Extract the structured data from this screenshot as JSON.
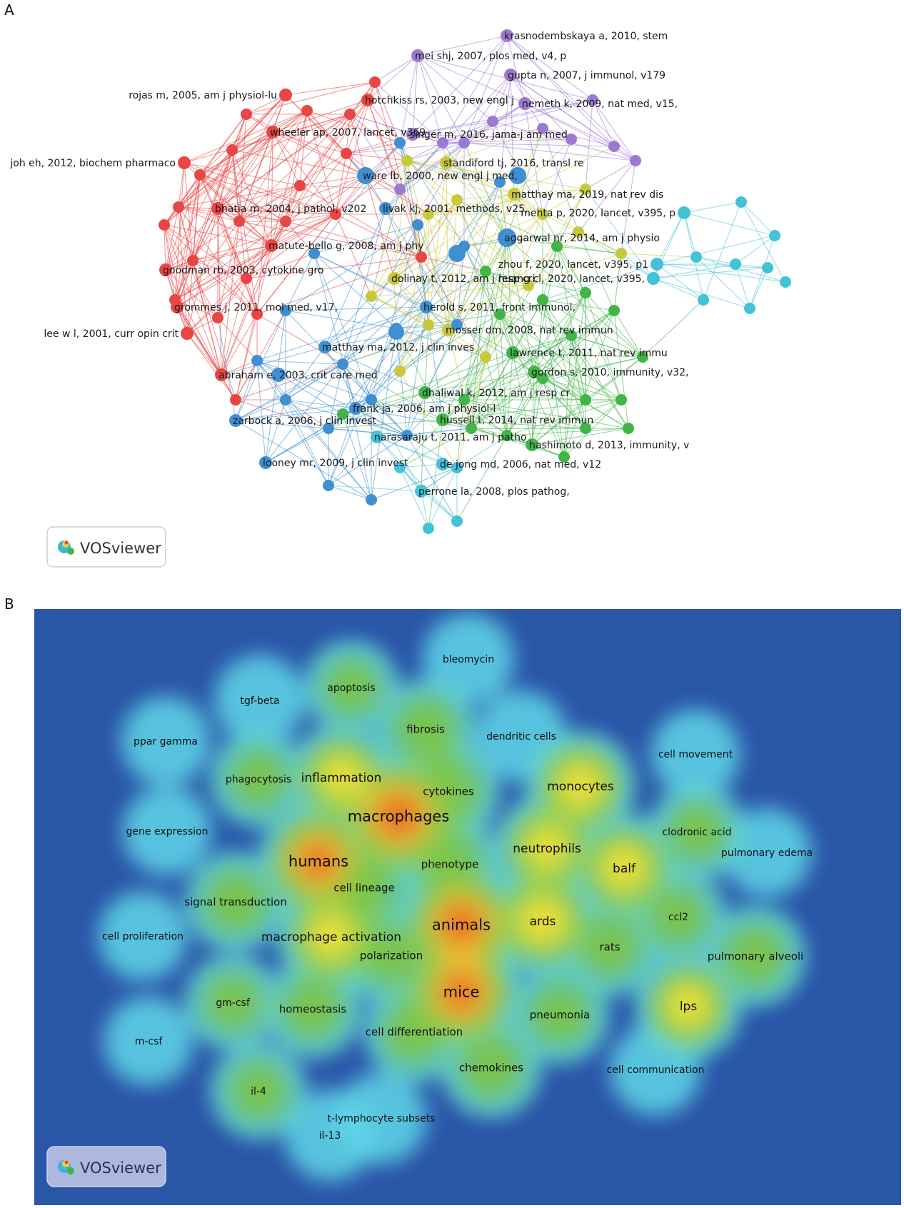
{
  "panel_a": {
    "letter": "A",
    "colors": {
      "red": "#e84545",
      "purple": "#9d7ad1",
      "blue": "#3f8fd2",
      "green": "#41b548",
      "yellow": "#c8c83c",
      "cyan": "#43c2d8"
    },
    "logo_text": "VOSviewer",
    "labeled_nodes": [
      {
        "label": "krasnodembskaya a, 2010, stem",
        "cluster": "purple"
      },
      {
        "label": "mei shj, 2007, plos med, v4, p",
        "cluster": "purple"
      },
      {
        "label": "gupta n, 2007, j immunol, v179",
        "cluster": "purple"
      },
      {
        "label": "rojas m, 2005, am j physiol-lu",
        "cluster": "red"
      },
      {
        "label": "hotchkiss rs, 2003, new engl j",
        "cluster": "red"
      },
      {
        "label": "nemeth k, 2009, nat med, v15,",
        "cluster": "purple"
      },
      {
        "label": "wheeler ap, 2007, lancet, v369",
        "cluster": "red"
      },
      {
        "label": "singer m, 2016, jama-j am med",
        "cluster": "purple"
      },
      {
        "label": "standiford tj, 2016, transl re",
        "cluster": "yellow"
      },
      {
        "label": "joh eh, 2012, biochem pharmaco",
        "cluster": "red"
      },
      {
        "label": "ware lb, 2000, new engl j med,",
        "cluster": "red"
      },
      {
        "label": "matthay ma, 2019, nat rev dis",
        "cluster": "yellow"
      },
      {
        "label": "livak kj, 2001, methods, v25,",
        "cluster": "blue"
      },
      {
        "label": "mehta p, 2020, lancet, v395, p",
        "cluster": "cyan"
      },
      {
        "label": "bhatia m, 2004, j pathol, v202",
        "cluster": "red"
      },
      {
        "label": "aggarwal nr, 2014, am j physio",
        "cluster": "green"
      },
      {
        "label": "matute-bello g, 2008, am j phy",
        "cluster": "red"
      },
      {
        "label": "zhou f, 2020, lancet, v395, p1",
        "cluster": "cyan"
      },
      {
        "label": "goodman rb, 2003, cytokine gro",
        "cluster": "red"
      },
      {
        "label": "dolinay t, 2012, am j resp cri",
        "cluster": "yellow"
      },
      {
        "label": "huang cl, 2020, lancet, v395,",
        "cluster": "cyan"
      },
      {
        "label": "herold s, 2011, front immunol,",
        "cluster": "blue"
      },
      {
        "label": "grommes j, 2011, mol med, v17,",
        "cluster": "red"
      },
      {
        "label": "mosser dm, 2008, nat rev immun",
        "cluster": "yellow"
      },
      {
        "label": "lee w l, 2001, curr opin crit",
        "cluster": "red"
      },
      {
        "label": "matthay ma, 2012, j clin inves",
        "cluster": "blue"
      },
      {
        "label": "lawrence t, 2011, nat rev immu",
        "cluster": "green"
      },
      {
        "label": "abraham e, 2003, crit care med",
        "cluster": "red"
      },
      {
        "label": "gordon s, 2010, immunity, v32,",
        "cluster": "green"
      },
      {
        "label": "dhaliwal k, 2012, am j resp cr",
        "cluster": "green"
      },
      {
        "label": "frank ja, 2006, am j physiol-l",
        "cluster": "blue"
      },
      {
        "label": "zarbock a, 2006, j clin invest",
        "cluster": "blue"
      },
      {
        "label": "hussell t, 2014, nat rev immun",
        "cluster": "green"
      },
      {
        "label": "narasaraju t, 2011, am j patho",
        "cluster": "cyan"
      },
      {
        "label": "hashimoto d, 2013, immunity, v",
        "cluster": "green"
      },
      {
        "label": "looney mr, 2009, j clin invest",
        "cluster": "blue"
      },
      {
        "label": "de jong md, 2006, nat med, v12",
        "cluster": "cyan"
      },
      {
        "label": "perrone la, 2008, plos pathog,",
        "cluster": "cyan"
      }
    ]
  },
  "panel_b": {
    "letter": "B",
    "logo_text": "VOSviewer",
    "colors": {
      "background": "#2a56a8",
      "low": "#5fd6e8",
      "mid": "#7cc442",
      "high": "#f4e23a",
      "peak": "#e8321e"
    },
    "terms": [
      {
        "label": "bleomycin",
        "level": 0.2
      },
      {
        "label": "tgf-beta",
        "level": 0.2
      },
      {
        "label": "apoptosis",
        "level": 0.25
      },
      {
        "label": "fibrosis",
        "level": 0.4
      },
      {
        "label": "dendritic cells",
        "level": 0.2
      },
      {
        "label": "ppar gamma",
        "level": 0.15
      },
      {
        "label": "cell movement",
        "level": 0.15
      },
      {
        "label": "phagocytosis",
        "level": 0.3
      },
      {
        "label": "inflammation",
        "level": 0.55
      },
      {
        "label": "cytokines",
        "level": 0.45
      },
      {
        "label": "monocytes",
        "level": 0.6
      },
      {
        "label": "macrophages",
        "level": 1.0
      },
      {
        "label": "gene expression",
        "level": 0.15
      },
      {
        "label": "clodronic acid",
        "level": 0.3
      },
      {
        "label": "pulmonary edema",
        "level": 0.15
      },
      {
        "label": "neutrophils",
        "level": 0.55
      },
      {
        "label": "humans",
        "level": 0.85
      },
      {
        "label": "phenotype",
        "level": 0.4
      },
      {
        "label": "balf",
        "level": 0.6
      },
      {
        "label": "cell lineage",
        "level": 0.4
      },
      {
        "label": "signal transduction",
        "level": 0.4
      },
      {
        "label": "ccl2",
        "level": 0.3
      },
      {
        "label": "animals",
        "level": 0.95
      },
      {
        "label": "ards",
        "level": 0.65
      },
      {
        "label": "cell proliferation",
        "level": 0.15
      },
      {
        "label": "macrophage activation",
        "level": 0.6
      },
      {
        "label": "polarization",
        "level": 0.35
      },
      {
        "label": "rats",
        "level": 0.35
      },
      {
        "label": "pulmonary alveoli",
        "level": 0.4
      },
      {
        "label": "mice",
        "level": 0.9
      },
      {
        "label": "gm-csf",
        "level": 0.3
      },
      {
        "label": "homeostasis",
        "level": 0.35
      },
      {
        "label": "lps",
        "level": 0.55
      },
      {
        "label": "pneumonia",
        "level": 0.35
      },
      {
        "label": "cell differentiation",
        "level": 0.4
      },
      {
        "label": "m-csf",
        "level": 0.15
      },
      {
        "label": "chemokines",
        "level": 0.4
      },
      {
        "label": "cell communication",
        "level": 0.2
      },
      {
        "label": "il-4",
        "level": 0.3
      },
      {
        "label": "t-lymphocyte subsets",
        "level": 0.2
      },
      {
        "label": "il-13",
        "level": 0.2
      }
    ]
  }
}
